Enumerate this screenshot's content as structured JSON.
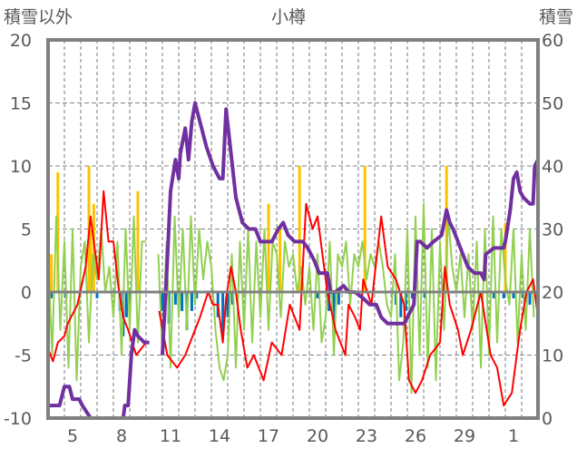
{
  "chart_data": {
    "type": "line",
    "title": "小樽",
    "ylabel_left": "積雪以外",
    "ylabel_right": "積雪",
    "ylim_left": [
      -10,
      20
    ],
    "yticks_left": [
      20,
      15,
      10,
      5,
      0,
      -5,
      -10
    ],
    "ylim_right": [
      0,
      60
    ],
    "yticks_right": [
      60,
      50,
      40,
      30,
      20,
      10,
      0
    ],
    "xlim_day": [
      4,
      34
    ],
    "xticks": [
      {
        "day": 5,
        "label": "5"
      },
      {
        "day": 8,
        "label": "8"
      },
      {
        "day": 11,
        "label": "11"
      },
      {
        "day": 14,
        "label": "14"
      },
      {
        "day": 17,
        "label": "17"
      },
      {
        "day": 20,
        "label": "20"
      },
      {
        "day": 23,
        "label": "23"
      },
      {
        "day": 26,
        "label": "26"
      },
      {
        "day": 29,
        "label": "29"
      },
      {
        "day": 32,
        "label": "1"
      }
    ],
    "grid": true,
    "colors": {
      "snow_depth": "#7030a0",
      "red_series": "#ff0000",
      "green_series": "#92d050",
      "positive_bars": "#ffc000",
      "negative_bars": "#0070c0",
      "frame": "#808080"
    },
    "series": [
      {
        "name": "積雪",
        "axis": "right",
        "color": "#7030a0",
        "points": [
          [
            4.0,
            2
          ],
          [
            4.7,
            2
          ],
          [
            5.0,
            5
          ],
          [
            5.3,
            5
          ],
          [
            5.5,
            3
          ],
          [
            5.9,
            3
          ],
          [
            6.1,
            2
          ],
          [
            6.6,
            0
          ],
          [
            8.6,
            0
          ],
          [
            8.7,
            2
          ],
          [
            8.9,
            2
          ],
          [
            9.1,
            10
          ],
          [
            9.3,
            14
          ],
          [
            9.5,
            13
          ],
          [
            9.9,
            12
          ],
          [
            10.2,
            12
          ],
          [
            10.2,
            null
          ],
          [
            11.0,
            10
          ],
          [
            11.3,
            25
          ],
          [
            11.5,
            36
          ],
          [
            11.8,
            41
          ],
          [
            12.0,
            38
          ],
          [
            12.1,
            42
          ],
          [
            12.4,
            46
          ],
          [
            12.6,
            41
          ],
          [
            12.8,
            47
          ],
          [
            13.0,
            50
          ],
          [
            13.3,
            47
          ],
          [
            13.7,
            43
          ],
          [
            14.1,
            40
          ],
          [
            14.5,
            38
          ],
          [
            14.7,
            38
          ],
          [
            14.9,
            49
          ],
          [
            15.2,
            42
          ],
          [
            15.5,
            35
          ],
          [
            15.9,
            31
          ],
          [
            16.3,
            30
          ],
          [
            16.7,
            30
          ],
          [
            17.0,
            28
          ],
          [
            17.7,
            28
          ],
          [
            18.1,
            30
          ],
          [
            18.4,
            31
          ],
          [
            18.7,
            29
          ],
          [
            19.1,
            28
          ],
          [
            19.6,
            28
          ],
          [
            19.9,
            27
          ],
          [
            20.3,
            25
          ],
          [
            20.6,
            23
          ],
          [
            21.1,
            23
          ],
          [
            21.3,
            20
          ],
          [
            21.6,
            20
          ],
          [
            22.1,
            21
          ],
          [
            22.4,
            20
          ],
          [
            22.8,
            20
          ],
          [
            23.3,
            19
          ],
          [
            23.7,
            18
          ],
          [
            24.1,
            18
          ],
          [
            24.4,
            16
          ],
          [
            24.8,
            15
          ],
          [
            25.8,
            15
          ],
          [
            26.2,
            17
          ],
          [
            26.4,
            18
          ],
          [
            26.6,
            28
          ],
          [
            26.8,
            28
          ],
          [
            27.2,
            27
          ],
          [
            27.6,
            28
          ],
          [
            28.1,
            29
          ],
          [
            28.4,
            33
          ],
          [
            28.6,
            31
          ],
          [
            28.8,
            30
          ],
          [
            29.4,
            26
          ],
          [
            29.7,
            24
          ],
          [
            30.1,
            23
          ],
          [
            30.5,
            23
          ],
          [
            30.7,
            22
          ],
          [
            30.8,
            26
          ],
          [
            31.3,
            27
          ],
          [
            31.9,
            27
          ],
          [
            32.0,
            28
          ],
          [
            32.3,
            33
          ],
          [
            32.5,
            38
          ],
          [
            32.7,
            39
          ],
          [
            32.9,
            36
          ],
          [
            33.1,
            35
          ],
          [
            33.5,
            34
          ],
          [
            33.7,
            34
          ],
          [
            33.8,
            40
          ],
          [
            34.0,
            41
          ]
        ]
      },
      {
        "name": "red",
        "axis": "left",
        "color": "#ff0000",
        "points": [
          [
            4.0,
            -4.5
          ],
          [
            4.3,
            -5.5
          ],
          [
            4.6,
            -4
          ],
          [
            5.0,
            -3.5
          ],
          [
            5.2,
            -2.5
          ],
          [
            5.8,
            -1
          ],
          [
            6.3,
            2
          ],
          [
            6.6,
            6
          ],
          [
            6.8,
            4
          ],
          [
            7.1,
            1
          ],
          [
            7.4,
            8
          ],
          [
            7.7,
            4
          ],
          [
            8.0,
            4
          ],
          [
            8.3,
            0.5
          ],
          [
            8.6,
            -2
          ],
          [
            8.9,
            -3
          ],
          [
            9.4,
            -5
          ],
          [
            10.0,
            -4
          ],
          [
            10.0,
            null
          ],
          [
            10.8,
            -1.5
          ],
          [
            11.3,
            -5
          ],
          [
            11.9,
            -6
          ],
          [
            12.4,
            -5
          ],
          [
            12.7,
            -4
          ],
          [
            13.3,
            -2
          ],
          [
            13.8,
            0
          ],
          [
            14.1,
            -1
          ],
          [
            14.4,
            -1
          ],
          [
            14.7,
            -4
          ],
          [
            14.9,
            -0.5
          ],
          [
            15.2,
            2
          ],
          [
            15.5,
            0
          ],
          [
            15.8,
            -3
          ],
          [
            16.2,
            -6
          ],
          [
            16.6,
            -5
          ],
          [
            17.2,
            -7
          ],
          [
            17.7,
            -4
          ],
          [
            18.3,
            -5
          ],
          [
            18.8,
            -1
          ],
          [
            19.4,
            -3
          ],
          [
            19.8,
            7
          ],
          [
            20.2,
            5
          ],
          [
            20.5,
            6
          ],
          [
            21.1,
            0
          ],
          [
            21.6,
            -3
          ],
          [
            22.2,
            -5
          ],
          [
            22.4,
            -1
          ],
          [
            22.8,
            -2
          ],
          [
            23.1,
            -3
          ],
          [
            23.3,
            1
          ],
          [
            23.8,
            -1
          ],
          [
            24.4,
            6
          ],
          [
            24.8,
            2
          ],
          [
            25.3,
            1
          ],
          [
            25.8,
            -1
          ],
          [
            26.1,
            -7
          ],
          [
            26.5,
            -8
          ],
          [
            26.9,
            -7
          ],
          [
            27.4,
            -5
          ],
          [
            28.0,
            -4
          ],
          [
            28.3,
            2
          ],
          [
            28.6,
            -1
          ],
          [
            29.1,
            -3
          ],
          [
            29.4,
            -5
          ],
          [
            29.9,
            -3
          ],
          [
            30.5,
            0
          ],
          [
            31.1,
            -5
          ],
          [
            31.5,
            -6
          ],
          [
            31.9,
            -9
          ],
          [
            32.4,
            -8
          ],
          [
            32.9,
            -3
          ],
          [
            33.3,
            0
          ],
          [
            33.7,
            1
          ],
          [
            34.0,
            -2
          ]
        ]
      },
      {
        "name": "green",
        "axis": "left",
        "color": "#92d050",
        "start_day": 4.0,
        "step_day": 0.25,
        "values": [
          3,
          -5,
          6,
          -3,
          4,
          -6,
          5,
          -7,
          2,
          4,
          -4,
          3,
          1,
          5,
          0,
          2,
          -2,
          4,
          -5,
          5,
          -3,
          6,
          -4,
          4,
          4,
          null,
          null,
          3,
          -5,
          4,
          -6,
          6,
          -2,
          5,
          -3,
          6,
          -1,
          5,
          1,
          4,
          2,
          -3,
          -6,
          -7,
          -5,
          3,
          -6,
          4,
          -3,
          5,
          -4,
          4,
          -2,
          5,
          -3,
          4,
          3,
          -2,
          4,
          2,
          3,
          0,
          2,
          -1,
          2,
          -3,
          3,
          -4,
          -2,
          4,
          -5,
          3,
          2,
          4,
          -1,
          3,
          2,
          4,
          1,
          3,
          2,
          4,
          2,
          -1,
          -2,
          3,
          -7,
          -4,
          5,
          -8,
          6,
          -5,
          7,
          -6,
          5,
          -7,
          4,
          -3,
          6,
          2,
          0,
          3,
          -2,
          3,
          -3,
          4,
          -6,
          5,
          -5,
          6,
          -4,
          5,
          1,
          -1,
          5,
          -4,
          3,
          -3,
          5,
          -2
        ]
      }
    ],
    "bars": [
      {
        "name": "positive",
        "axis": "left",
        "color": "#ffc000",
        "points": [
          [
            4.2,
            3
          ],
          [
            4.6,
            9.5
          ],
          [
            6.5,
            10
          ],
          [
            6.6,
            5
          ],
          [
            6.8,
            7
          ],
          [
            9.5,
            8
          ],
          [
            17.5,
            7
          ],
          [
            18.2,
            5
          ],
          [
            19.4,
            10
          ],
          [
            23.4,
            10
          ],
          [
            28.4,
            10
          ],
          [
            32.0,
            5.5
          ]
        ]
      },
      {
        "name": "negative",
        "axis": "left",
        "color": "#0070c0",
        "points": [
          [
            4.2,
            -0.5
          ],
          [
            5.1,
            -0.5
          ],
          [
            7.0,
            -0.5
          ],
          [
            8.4,
            -1.5
          ],
          [
            8.6,
            -3.5
          ],
          [
            8.8,
            -2
          ],
          [
            9.0,
            -1
          ],
          [
            11.0,
            -1.5
          ],
          [
            11.4,
            -2.5
          ],
          [
            11.8,
            -1
          ],
          [
            12.2,
            -1.5
          ],
          [
            12.5,
            -3
          ],
          [
            12.8,
            -1.5
          ],
          [
            13.1,
            -0.5
          ],
          [
            14.4,
            -2
          ],
          [
            14.7,
            -3.5
          ],
          [
            15.0,
            -2
          ],
          [
            15.3,
            -1
          ],
          [
            20.5,
            -0.5
          ],
          [
            21.2,
            -1.5
          ],
          [
            21.5,
            -2.5
          ],
          [
            21.8,
            -1
          ],
          [
            25.3,
            -1
          ],
          [
            25.6,
            -2
          ],
          [
            25.9,
            -1.5
          ],
          [
            26.3,
            -0.5
          ],
          [
            27.1,
            -0.5
          ],
          [
            31.3,
            -0.5
          ],
          [
            31.9,
            -0.5
          ],
          [
            32.5,
            -0.5
          ],
          [
            33.1,
            -0.5
          ],
          [
            33.5,
            -1
          ]
        ]
      }
    ]
  }
}
